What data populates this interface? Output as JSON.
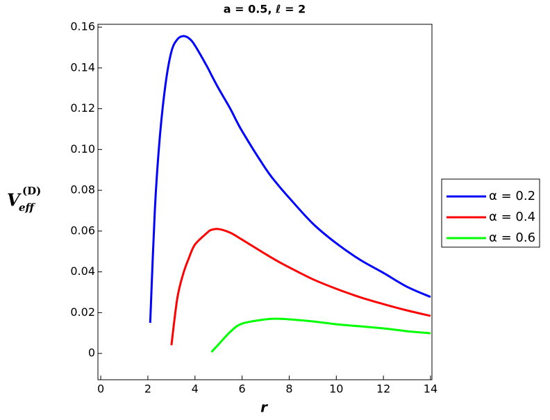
{
  "chart_data": {
    "type": "line",
    "title": "a = 0.5, ℓ = 2",
    "x_label": "r",
    "y_label": {
      "base": "V",
      "sup": "(D)",
      "sub": "eff"
    },
    "x": [
      2.1,
      2.3,
      2.5,
      2.75,
      3,
      3.25,
      3.5,
      3.75,
      4,
      4.5,
      4.7,
      5,
      5.5,
      6,
      7,
      7.5,
      8,
      9,
      10,
      11,
      12,
      13,
      14
    ],
    "series": [
      {
        "name": "α = 0.2",
        "color": "#0000ff",
        "values": [
          0.015,
          0.071,
          0.105,
          0.132,
          0.148,
          0.154,
          0.1556,
          0.1545,
          0.151,
          0.141,
          0.1365,
          0.13,
          0.12,
          0.109,
          0.0906,
          0.083,
          0.0763,
          0.0637,
          0.054,
          0.046,
          0.0395,
          0.0327,
          0.0277
        ]
      },
      {
        "name": "α = 0.4",
        "color": "#ff0000",
        "values": [
          null,
          null,
          null,
          null,
          0.004,
          0.027,
          0.039,
          0.047,
          0.0534,
          0.059,
          0.0606,
          0.061,
          0.0592,
          0.0558,
          0.0487,
          0.0453,
          0.0422,
          0.0364,
          0.0317,
          0.0276,
          0.0242,
          0.0211,
          0.0184
        ]
      },
      {
        "name": "α = 0.6",
        "color": "#00ff00",
        "values": [
          null,
          null,
          null,
          null,
          null,
          null,
          null,
          null,
          null,
          null,
          0.0007,
          0.0044,
          0.0106,
          0.0146,
          0.0167,
          0.017,
          0.0167,
          0.0157,
          0.0143,
          0.0133,
          0.0123,
          0.0109,
          0.0099
        ]
      }
    ],
    "xlim": [
      -0.12,
      14.06
    ],
    "ylim": [
      -0.0129,
      0.1614
    ],
    "xticks": [
      0,
      2,
      4,
      6,
      8,
      10,
      12,
      14
    ],
    "yticks": [
      0,
      0.02,
      0.04,
      0.06,
      0.08,
      {
        "value": 0.1,
        "label": "0.10"
      },
      0.12,
      0.14,
      0.16
    ],
    "legend": "right"
  }
}
